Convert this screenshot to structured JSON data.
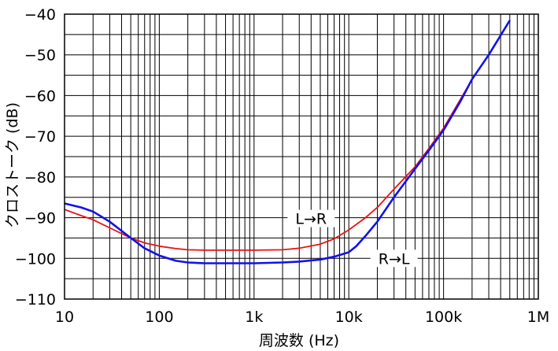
{
  "chart_data": {
    "type": "line",
    "title": "",
    "xlabel": "周波数 (Hz)",
    "ylabel": "クロストーク (dB)",
    "x_scale": "log",
    "xlim": [
      10,
      1000000
    ],
    "ylim": [
      -110,
      -40
    ],
    "grid": true,
    "x_tick_labels": [
      {
        "value": 10,
        "label": "10"
      },
      {
        "value": 100,
        "label": "100"
      },
      {
        "value": 1000,
        "label": "1k"
      },
      {
        "value": 10000,
        "label": "10k"
      },
      {
        "value": 100000,
        "label": "100k"
      },
      {
        "value": 1000000,
        "label": "1M"
      }
    ],
    "y_ticks": [
      -40,
      -50,
      -60,
      -70,
      -80,
      -90,
      -100,
      -110
    ],
    "series": [
      {
        "name": "L→R",
        "color": "#ee1111",
        "x": [
          10,
          15,
          20,
          30,
          50,
          70,
          100,
          150,
          200,
          300,
          500,
          1000,
          2000,
          3000,
          5000,
          7000,
          10000,
          15000,
          20000,
          30000,
          50000,
          70000,
          100000,
          150000,
          200000,
          300000,
          500000
        ],
        "y": [
          -88,
          -89.5,
          -90.5,
          -92.5,
          -95,
          -96.2,
          -97,
          -97.6,
          -97.9,
          -98,
          -98,
          -98,
          -97.9,
          -97.5,
          -96.5,
          -95.2,
          -93,
          -90,
          -87.5,
          -83,
          -77.5,
          -73,
          -68,
          -61,
          -56,
          -50,
          -41.5
        ]
      },
      {
        "name": "R→L",
        "color": "#1111ee",
        "x": [
          10,
          15,
          20,
          30,
          50,
          70,
          100,
          150,
          200,
          300,
          500,
          1000,
          2000,
          3000,
          5000,
          7000,
          10000,
          12000,
          15000,
          20000,
          30000,
          50000,
          70000,
          100000,
          150000,
          200000,
          300000,
          500000
        ],
        "y": [
          -86.5,
          -87.5,
          -88.5,
          -91,
          -95,
          -97.5,
          -99.3,
          -100.6,
          -101,
          -101.2,
          -101.2,
          -101.2,
          -101,
          -100.8,
          -100.3,
          -99.6,
          -98.5,
          -97,
          -94.5,
          -91,
          -85,
          -78,
          -73.5,
          -68.5,
          -61.5,
          -56,
          -50,
          -41.5
        ]
      }
    ]
  }
}
